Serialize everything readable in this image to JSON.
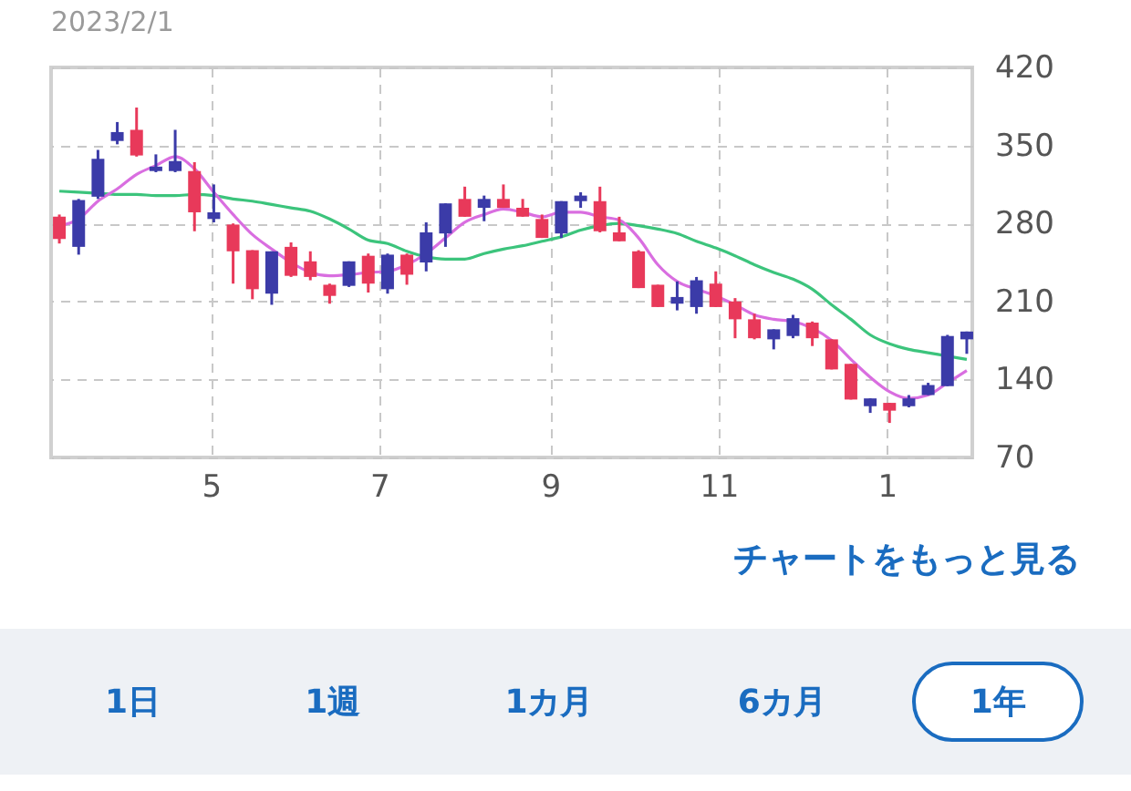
{
  "chart_data": {
    "type": "candlestick",
    "title": "2023/2/1",
    "x": [
      "2022-03-07",
      "2022-03-14",
      "2022-03-21",
      "2022-03-28",
      "2022-04-04",
      "2022-04-11",
      "2022-04-18",
      "2022-04-25",
      "2022-05-02",
      "2022-05-09",
      "2022-05-16",
      "2022-05-23",
      "2022-05-30",
      "2022-06-06",
      "2022-06-13",
      "2022-06-20",
      "2022-06-27",
      "2022-07-04",
      "2022-07-11",
      "2022-07-18",
      "2022-07-25",
      "2022-08-01",
      "2022-08-08",
      "2022-08-15",
      "2022-08-22",
      "2022-08-29",
      "2022-09-05",
      "2022-09-12",
      "2022-09-19",
      "2022-09-26",
      "2022-10-03",
      "2022-10-10",
      "2022-10-17",
      "2022-10-24",
      "2022-10-31",
      "2022-11-07",
      "2022-11-14",
      "2022-11-21",
      "2022-11-28",
      "2022-12-05",
      "2022-12-12",
      "2022-12-19",
      "2022-12-26",
      "2023-01-02",
      "2023-01-09",
      "2023-01-16",
      "2023-01-23",
      "2023-01-30"
    ],
    "ohlc": [
      [
        286,
        288,
        262,
        266
      ],
      [
        259,
        302,
        252,
        301
      ],
      [
        304,
        346,
        302,
        338
      ],
      [
        354,
        371,
        351,
        362
      ],
      [
        364,
        384,
        340,
        341
      ],
      [
        327,
        342,
        326,
        331
      ],
      [
        327,
        364,
        326,
        336
      ],
      [
        327,
        335,
        273,
        290
      ],
      [
        284,
        315,
        281,
        290
      ],
      [
        279,
        280,
        226,
        255
      ],
      [
        256,
        256,
        212,
        221
      ],
      [
        217,
        255,
        207,
        255
      ],
      [
        259,
        263,
        232,
        233
      ],
      [
        246,
        255,
        229,
        232
      ],
      [
        225,
        226,
        208,
        215
      ],
      [
        224,
        246,
        223,
        246
      ],
      [
        251,
        253,
        218,
        226
      ],
      [
        221,
        253,
        217,
        252
      ],
      [
        252,
        253,
        225,
        234
      ],
      [
        245,
        281,
        237,
        272
      ],
      [
        271,
        298,
        259,
        298
      ],
      [
        302,
        313,
        286,
        286
      ],
      [
        294,
        305,
        282,
        302
      ],
      [
        302,
        315,
        294,
        294
      ],
      [
        294,
        302,
        286,
        286
      ],
      [
        284,
        288,
        267,
        267
      ],
      [
        271,
        300,
        267,
        300
      ],
      [
        300,
        308,
        294,
        305
      ],
      [
        300,
        313,
        272,
        273
      ],
      [
        272,
        286,
        264,
        264
      ],
      [
        255,
        256,
        222,
        222
      ],
      [
        225,
        225,
        205,
        205
      ],
      [
        208,
        228,
        202,
        214
      ],
      [
        205,
        232,
        199,
        229
      ],
      [
        226,
        237,
        205,
        205
      ],
      [
        210,
        213,
        177,
        194
      ],
      [
        194,
        199,
        176,
        177
      ],
      [
        176,
        185,
        167,
        185
      ],
      [
        179,
        198,
        177,
        195
      ],
      [
        191,
        192,
        170,
        177
      ],
      [
        176,
        176,
        149,
        149
      ],
      [
        154,
        154,
        122,
        122
      ],
      [
        116,
        123,
        110,
        123
      ],
      [
        119,
        119,
        101,
        112
      ],
      [
        116,
        126,
        115,
        123
      ],
      [
        126,
        137,
        126,
        135
      ],
      [
        134,
        180,
        134,
        179
      ],
      [
        176,
        183,
        163,
        183
      ]
    ],
    "colors": [
      "#e8395a",
      "#3b3ba8",
      "#3b3ba8",
      "#3b3ba8",
      "#e8395a",
      "#3b3ba8",
      "#3b3ba8",
      "#e8395a",
      "#3b3ba8",
      "#e8395a",
      "#e8395a",
      "#3b3ba8",
      "#e8395a",
      "#e8395a",
      "#e8395a",
      "#3b3ba8",
      "#e8395a",
      "#3b3ba8",
      "#e8395a",
      "#3b3ba8",
      "#3b3ba8",
      "#e8395a",
      "#3b3ba8",
      "#e8395a",
      "#e8395a",
      "#e8395a",
      "#3b3ba8",
      "#3b3ba8",
      "#e8395a",
      "#e8395a",
      "#e8395a",
      "#e8395a",
      "#3b3ba8",
      "#3b3ba8",
      "#e8395a",
      "#e8395a",
      "#e8395a",
      "#3b3ba8",
      "#3b3ba8",
      "#e8395a",
      "#e8395a",
      "#e8395a",
      "#3b3ba8",
      "#e8395a",
      "#3b3ba8",
      "#3b3ba8",
      "#3b3ba8",
      "#3b3ba8"
    ],
    "series": [
      {
        "type": "line",
        "color": "#3cc47c",
        "values": [
          309,
          308,
          307,
          306,
          306,
          305,
          305,
          306,
          305,
          302,
          300,
          297,
          294,
          291,
          284,
          275,
          265,
          262,
          255,
          250,
          248,
          248,
          253,
          257,
          260,
          264,
          268,
          274,
          278,
          280,
          278,
          275,
          271,
          264,
          258,
          251,
          243,
          236,
          230,
          221,
          207,
          194,
          180,
          172,
          167,
          164,
          161,
          158
        ]
      },
      {
        "type": "line",
        "color": "#d96ee0",
        "values": [
          278,
          284,
          300,
          311,
          324,
          332,
          340,
          329,
          308,
          288,
          270,
          257,
          245,
          236,
          233,
          234,
          236,
          237,
          243,
          253,
          267,
          281,
          288,
          293,
          290,
          286,
          290,
          290,
          286,
          283,
          267,
          243,
          228,
          221,
          215,
          207,
          198,
          194,
          192,
          186,
          175,
          158,
          142,
          129,
          123,
          126,
          137,
          148
        ]
      }
    ],
    "xlim": [
      "2022-03-04",
      "2023-02-01"
    ],
    "xticks": [
      {
        "value": "2022-05-01",
        "label": "5"
      },
      {
        "value": "2022-07-01",
        "label": "7"
      },
      {
        "value": "2022-09-01",
        "label": "9"
      },
      {
        "value": "2022-11-01",
        "label": "11"
      },
      {
        "value": "2023-01-01",
        "label": "1"
      }
    ],
    "ylim": [
      70,
      420
    ],
    "yticks": [
      70,
      140,
      210,
      280,
      350,
      420
    ],
    "grid": true,
    "annotations": [
      "チャートをもっと見る",
      "1日",
      "1週",
      "1カ月",
      "6カ月",
      "1年"
    ]
  }
}
